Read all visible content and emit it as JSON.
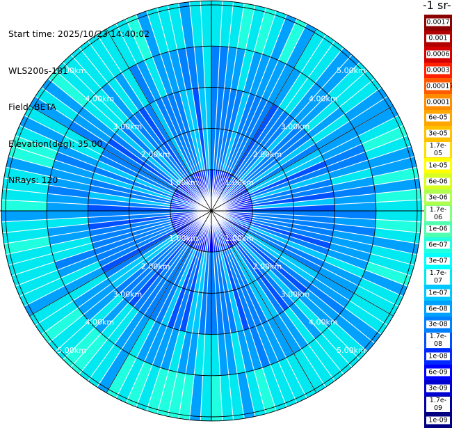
{
  "header": {
    "start_time": "Start time: 2025/10/23 14:40:02",
    "instrument": "WLS200s-181",
    "field": "Field: BETA",
    "elevation": "Elevation(deg): 35.00",
    "nrays": "NRays: 120"
  },
  "colorbar": {
    "units_title": "-1 sr-",
    "ticks": [
      "0.0017",
      "0.001",
      "0.0006",
      "0.0003",
      "0.00017",
      "0.0001",
      "6e-05",
      "3e-05",
      "1.7e-05",
      "1e-05",
      "6e-06",
      "3e-06",
      "1.7e-06",
      "1e-06",
      "6e-07",
      "3e-07",
      "1.7e-07",
      "1e-07",
      "6e-08",
      "3e-08",
      "1.7e-08",
      "1e-08",
      "6e-09",
      "3e-09",
      "1.7e-09",
      "1e-09"
    ],
    "colors": [
      "#8b0000",
      "#b00000",
      "#d40000",
      "#ff2000",
      "#ff5a00",
      "#ff8c00",
      "#ffa600",
      "#ffc000",
      "#ffdc00",
      "#ffff00",
      "#d8ff20",
      "#b0ff50",
      "#80ff80",
      "#50ffb0",
      "#20ffe0",
      "#00ffff",
      "#00e8f0",
      "#00c8ff",
      "#00a0ff",
      "#0080ff",
      "#0050ff",
      "#0028ff",
      "#0000ff",
      "#0000d0",
      "#0000a0",
      "#000080"
    ]
  },
  "chart_data": {
    "type": "heatmap",
    "projection": "polar-ppi",
    "title": "",
    "field": "BETA",
    "elevation_deg": 35.0,
    "n_rays": 120,
    "range_rings_km": [
      1.0,
      2.0,
      3.0,
      4.0,
      5.0
    ],
    "ring_labels": [
      "1.00km",
      "2.00km",
      "3.00km",
      "4.00km",
      "5.00km"
    ],
    "max_range_km": 5.1,
    "colorscale": "log",
    "value_range": [
      1e-09,
      0.0017
    ],
    "dominant_value_bands": [
      {
        "range_km": [
          0.0,
          1.0
        ],
        "approx_value": 1e-08
      },
      {
        "range_km": [
          1.0,
          3.0
        ],
        "approx_value": 3e-08
      },
      {
        "range_km": [
          3.0,
          4.0
        ],
        "approx_value": 6e-08
      },
      {
        "range_km": [
          4.0,
          5.1
        ],
        "approx_value": 1.7e-07
      }
    ]
  }
}
